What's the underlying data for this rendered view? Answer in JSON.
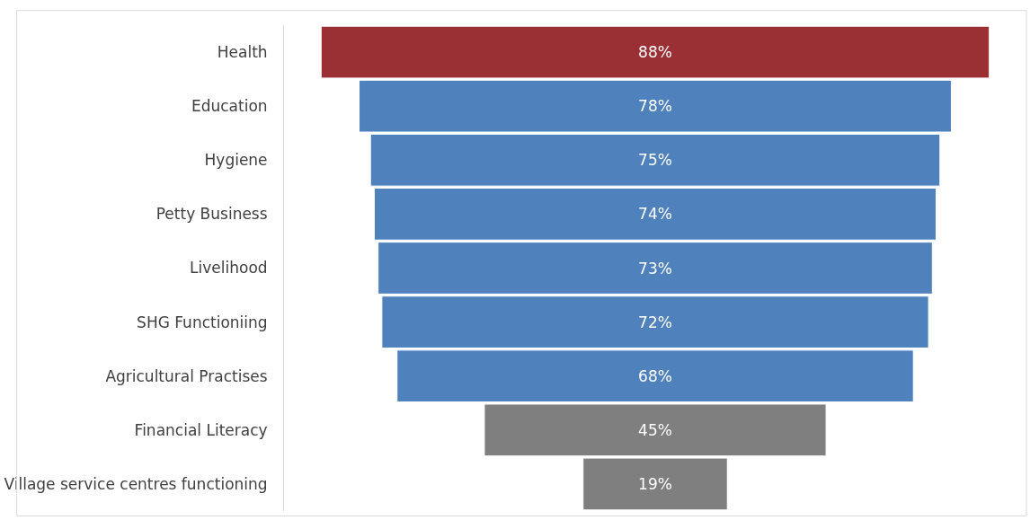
{
  "chart_data": {
    "type": "other",
    "categories": [
      "Health",
      "Education",
      "Hygiene",
      "Petty Business",
      "Livelihood",
      "SHG Functioniing",
      "Agricultural Practises",
      "Financial Literacy",
      "Village service centres functioning"
    ],
    "values": [
      88,
      78,
      75,
      74,
      73,
      72,
      68,
      45,
      19
    ],
    "colors": [
      "#9b3034",
      "#4f81bd",
      "#4f81bd",
      "#4f81bd",
      "#4f81bd",
      "#4f81bd",
      "#4f81bd",
      "#7f7f7f",
      "#7f7f7f"
    ],
    "value_labels": [
      "88%",
      "78%",
      "75%",
      "74%",
      "73%",
      "72%",
      "68%",
      "45%",
      "19%"
    ]
  }
}
